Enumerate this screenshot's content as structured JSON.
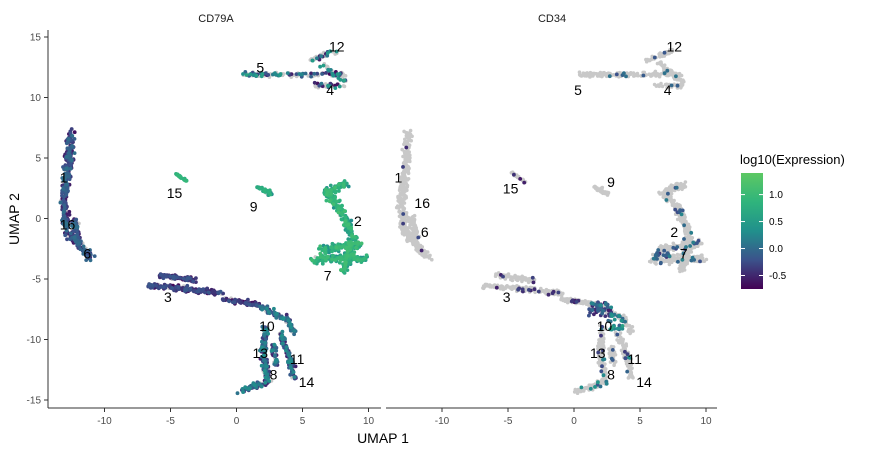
{
  "chart_data": {
    "type": "scatter",
    "xlabel": "UMAP 1",
    "ylabel": "UMAP 2",
    "xlim": [
      -14,
      11
    ],
    "ylim": [
      -15.7,
      15.8
    ],
    "x_ticks": [
      -10,
      -5,
      0,
      5,
      10
    ],
    "y_ticks": [
      -15,
      -10,
      -5,
      0,
      5,
      10,
      15
    ],
    "grid": false,
    "colorscale": {
      "title": "log10(Expression)",
      "min": -0.75,
      "max": 1.4,
      "ticks": [
        1.0,
        0.5,
        0.0,
        -0.5
      ],
      "tick_labels": [
        "1.0",
        "0.5",
        "0.0",
        "-0.5"
      ],
      "colors": [
        "#440154",
        "#3b528b",
        "#21908c",
        "#2fb47c",
        "#5dc863"
      ]
    },
    "background_color": "#c8c8c8",
    "panels": [
      {
        "title": "CD79A",
        "cluster_labels": [
          {
            "label": "12",
            "x": 7.6,
            "y": 14.2
          },
          {
            "label": "5",
            "x": 1.8,
            "y": 12.5
          },
          {
            "label": "4",
            "x": 7.1,
            "y": 10.6
          },
          {
            "label": "1",
            "x": -13.1,
            "y": 3.4
          },
          {
            "label": "15",
            "x": -4.7,
            "y": 2.1
          },
          {
            "label": "9",
            "x": 1.3,
            "y": 1.0
          },
          {
            "label": "2",
            "x": 9.2,
            "y": -0.2
          },
          {
            "label": "16",
            "x": -12.8,
            "y": -0.5
          },
          {
            "label": "6",
            "x": -11.3,
            "y": -2.9
          },
          {
            "label": "7",
            "x": 6.9,
            "y": -4.7
          },
          {
            "label": "3",
            "x": -5.2,
            "y": -6.5
          },
          {
            "label": "10",
            "x": 2.3,
            "y": -8.9
          },
          {
            "label": "13",
            "x": 1.8,
            "y": -11.1
          },
          {
            "label": "11",
            "x": 4.6,
            "y": -11.6
          },
          {
            "label": "8",
            "x": 2.8,
            "y": -12.9
          },
          {
            "label": "14",
            "x": 5.3,
            "y": -13.5
          }
        ],
        "clusters": [
          {
            "id": "12-4-5",
            "shape": "segments",
            "width": 0.6,
            "segs": [
              [
                0.4,
                11.9,
                4.2,
                11.9
              ],
              [
                4.2,
                11.9,
                8.2,
                11.9
              ],
              [
                5.5,
                13.1,
                7.5,
                13.8
              ],
              [
                6.0,
                11.0,
                8.2,
                11.0
              ],
              [
                6.5,
                12.8,
                8.3,
                11.2
              ]
            ],
            "n": 260,
            "fg": 0.42,
            "v": [
              -0.7,
              0.6
            ]
          },
          {
            "id": "1-16-6",
            "shape": "segments",
            "width": 0.9,
            "segs": [
              [
                -12.6,
                7.2,
                -12.7,
                4.5
              ],
              [
                -12.7,
                4.5,
                -13.1,
                1.5
              ],
              [
                -13.1,
                1.5,
                -12.8,
                -1.2
              ],
              [
                -12.8,
                -1.2,
                -11.0,
                -3.3
              ],
              [
                -12.3,
                0.0,
                -12.0,
                -2.0
              ]
            ],
            "n": 420,
            "fg": 0.9,
            "v": [
              -0.65,
              0.05
            ]
          },
          {
            "id": "15",
            "shape": "segments",
            "width": 0.25,
            "segs": [
              [
                -4.7,
                3.8,
                -3.7,
                3.0
              ]
            ],
            "n": 26,
            "fg": 1.0,
            "v": [
              0.7,
              0.95
            ]
          },
          {
            "id": "9",
            "shape": "segments",
            "width": 0.5,
            "segs": [
              [
                1.6,
                2.6,
                2.6,
                2.0
              ]
            ],
            "n": 40,
            "fg": 0.75,
            "v": [
              0.3,
              0.85
            ]
          },
          {
            "id": "2-7",
            "shape": "segments",
            "width": 0.9,
            "segs": [
              [
                8.3,
                2.8,
                6.8,
                2.2
              ],
              [
                6.8,
                2.2,
                7.9,
                0.8
              ],
              [
                7.9,
                0.8,
                8.8,
                -1.5
              ],
              [
                8.8,
                -1.5,
                8.2,
                -4.3
              ],
              [
                5.9,
                -3.4,
                9.8,
                -3.3
              ],
              [
                6.4,
                -2.6,
                9.5,
                -2.1
              ]
            ],
            "n": 540,
            "fg": 0.98,
            "v": [
              0.3,
              1.1
            ]
          },
          {
            "id": "3",
            "shape": "segments",
            "width": 0.6,
            "segs": [
              [
                -6.8,
                -5.5,
                -3.2,
                -5.9
              ],
              [
                -3.2,
                -5.9,
                -1.0,
                -6.2
              ],
              [
                -5.8,
                -4.7,
                -3.0,
                -5.1
              ],
              [
                -1.0,
                -6.6,
                1.8,
                -7.2
              ]
            ],
            "n": 320,
            "fg": 0.92,
            "v": [
              -0.75,
              -0.15
            ]
          },
          {
            "id": "10-13-11-8-14",
            "shape": "segments",
            "width": 0.7,
            "segs": [
              [
                1.8,
                -7.3,
                3.8,
                -8.3
              ],
              [
                3.8,
                -8.3,
                4.4,
                -9.5
              ],
              [
                2.2,
                -9.0,
                2.0,
                -11.2
              ],
              [
                2.0,
                -11.2,
                2.4,
                -13.5
              ],
              [
                2.4,
                -13.5,
                0.1,
                -14.3
              ],
              [
                3.3,
                -9.5,
                4.1,
                -11.6
              ],
              [
                4.1,
                -11.6,
                4.3,
                -13.2
              ],
              [
                2.8,
                -10.5,
                3.0,
                -12.0
              ]
            ],
            "n": 460,
            "fg": 0.78,
            "v": [
              -0.6,
              0.35
            ]
          }
        ]
      },
      {
        "title": "CD34",
        "cluster_labels": [
          {
            "label": "12",
            "x": 7.6,
            "y": 14.2
          },
          {
            "label": "5",
            "x": 0.3,
            "y": 10.6
          },
          {
            "label": "4",
            "x": 7.1,
            "y": 10.6
          },
          {
            "label": "1",
            "x": -13.3,
            "y": 3.4
          },
          {
            "label": "16",
            "x": -11.5,
            "y": 1.3
          },
          {
            "label": "15",
            "x": -4.8,
            "y": 2.5
          },
          {
            "label": "9",
            "x": 2.8,
            "y": 3.0
          },
          {
            "label": "2",
            "x": 7.6,
            "y": -1.1
          },
          {
            "label": "6",
            "x": -11.3,
            "y": -1.1
          },
          {
            "label": "7",
            "x": 8.3,
            "y": -2.9
          },
          {
            "label": "3",
            "x": -5.1,
            "y": -6.5
          },
          {
            "label": "10",
            "x": 2.3,
            "y": -8.9
          },
          {
            "label": "13",
            "x": 1.8,
            "y": -11.1
          },
          {
            "label": "11",
            "x": 4.6,
            "y": -11.6
          },
          {
            "label": "8",
            "x": 2.8,
            "y": -12.9
          },
          {
            "label": "14",
            "x": 5.3,
            "y": -13.5
          }
        ],
        "clusters": [
          {
            "id": "12-4-5",
            "shape": "segments",
            "width": 0.6,
            "segs": [
              [
                0.4,
                11.9,
                4.2,
                11.9
              ],
              [
                4.2,
                11.9,
                8.2,
                11.9
              ],
              [
                5.5,
                13.1,
                7.5,
                13.8
              ],
              [
                6.0,
                11.0,
                8.2,
                11.0
              ],
              [
                6.5,
                12.8,
                8.3,
                11.2
              ]
            ],
            "n": 260,
            "fg": 0.06,
            "v": [
              -0.3,
              0.1
            ]
          },
          {
            "id": "1-16-6",
            "shape": "segments",
            "width": 0.9,
            "segs": [
              [
                -12.6,
                7.2,
                -12.7,
                4.5
              ],
              [
                -12.7,
                4.5,
                -13.1,
                1.5
              ],
              [
                -13.1,
                1.5,
                -12.8,
                -1.2
              ],
              [
                -12.8,
                -1.2,
                -11.0,
                -3.3
              ],
              [
                -12.3,
                0.0,
                -12.0,
                -2.0
              ]
            ],
            "n": 420,
            "fg": 0.02,
            "v": [
              -0.6,
              -0.2
            ]
          },
          {
            "id": "15",
            "shape": "segments",
            "width": 0.25,
            "segs": [
              [
                -4.7,
                3.8,
                -3.7,
                3.0
              ]
            ],
            "n": 26,
            "fg": 0.05,
            "v": [
              -0.6,
              -0.4
            ]
          },
          {
            "id": "9",
            "shape": "segments",
            "width": 0.5,
            "segs": [
              [
                1.6,
                2.6,
                2.6,
                2.0
              ]
            ],
            "n": 40,
            "fg": 0.0,
            "v": [
              0,
              0
            ]
          },
          {
            "id": "2-7",
            "shape": "segments",
            "width": 0.9,
            "segs": [
              [
                8.3,
                2.8,
                6.8,
                2.2
              ],
              [
                6.8,
                2.2,
                7.9,
                0.8
              ],
              [
                7.9,
                0.8,
                8.8,
                -1.5
              ],
              [
                8.8,
                -1.5,
                8.2,
                -4.3
              ],
              [
                5.9,
                -3.4,
                9.8,
                -3.3
              ],
              [
                6.4,
                -2.6,
                9.5,
                -2.1
              ]
            ],
            "n": 540,
            "fg": 0.05,
            "v": [
              -0.3,
              0.25
            ]
          },
          {
            "id": "3",
            "shape": "segments",
            "width": 0.6,
            "segs": [
              [
                -6.8,
                -5.5,
                -3.2,
                -5.9
              ],
              [
                -3.2,
                -5.9,
                -1.0,
                -6.2
              ],
              [
                -5.8,
                -4.7,
                -3.0,
                -5.1
              ],
              [
                -1.0,
                -6.6,
                1.8,
                -7.2
              ]
            ],
            "n": 320,
            "fg": 0.05,
            "v": [
              -0.6,
              -0.3
            ]
          },
          {
            "id": "10-13-11-8-14",
            "shape": "segments",
            "width": 0.7,
            "segs": [
              [
                1.8,
                -7.3,
                3.8,
                -8.3
              ],
              [
                3.8,
                -8.3,
                4.4,
                -9.5
              ],
              [
                2.2,
                -9.0,
                2.0,
                -11.2
              ],
              [
                2.0,
                -11.2,
                2.4,
                -13.5
              ],
              [
                2.4,
                -13.5,
                0.1,
                -14.3
              ],
              [
                3.3,
                -9.5,
                4.1,
                -11.6
              ],
              [
                4.1,
                -11.6,
                4.3,
                -13.2
              ],
              [
                2.8,
                -10.5,
                3.0,
                -12.0
              ]
            ],
            "n": 460,
            "fg": 0.1,
            "v": [
              -0.55,
              0.4
            ]
          }
        ],
        "extra_expressing": [
          {
            "x": 2.0,
            "y": -7.5,
            "w": 1.8,
            "h": 1.2,
            "n": 45,
            "v": [
              -0.6,
              0.3
            ]
          },
          {
            "x": 3.2,
            "y": -8.6,
            "w": 1.2,
            "h": 1.2,
            "n": 25,
            "v": [
              -0.2,
              0.6
            ]
          },
          {
            "x": 6.6,
            "y": -3.1,
            "w": 1.3,
            "h": 0.6,
            "n": 16,
            "v": [
              -0.5,
              0.2
            ]
          }
        ]
      }
    ]
  }
}
